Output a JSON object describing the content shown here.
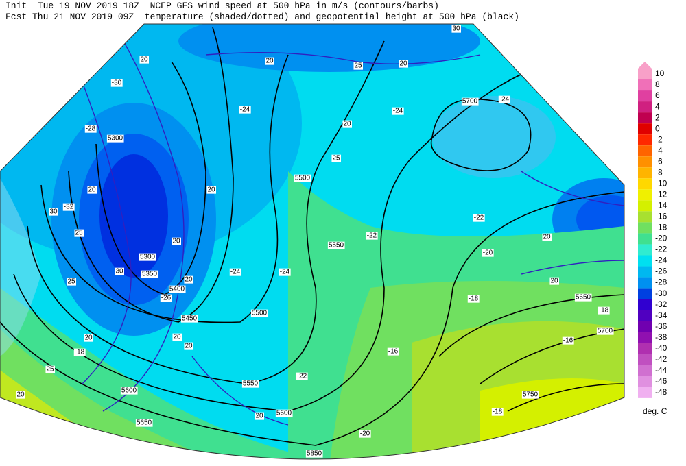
{
  "header": {
    "line1": "Init  Tue 19 NOV 2019 18Z  NCEP GFS wind speed at 500 hPa in m/s (contours/barbs)",
    "line2": "Fcst Thu 21 NOV 2019 09Z  temperature (shaded/dotted) and geopotential height at 500 hPa (black)"
  },
  "legend": {
    "labels": [
      10,
      8,
      6,
      4,
      2,
      0,
      -2,
      -4,
      -6,
      -8,
      -10,
      -12,
      -14,
      -16,
      -18,
      -20,
      -22,
      -24,
      -26,
      -28,
      -30,
      -32,
      -34,
      -36,
      -38,
      -40,
      -42,
      -44,
      -46,
      -48
    ],
    "colors": [
      "#f8a0c8",
      "#f070b8",
      "#e040a0",
      "#d02080",
      "#c00050",
      "#e00000",
      "#ff2800",
      "#ff6400",
      "#ff9000",
      "#ffb400",
      "#ffd800",
      "#f0f000",
      "#d4f000",
      "#a8e030",
      "#70e060",
      "#40e090",
      "#30ecd0",
      "#00e0f0",
      "#00b8f0",
      "#0090f0",
      "#0040e0",
      "#3000d0",
      "#5000c0",
      "#7000b0",
      "#9010b0",
      "#b030b0",
      "#c050c0",
      "#d070d0",
      "#e090e0",
      "#f0b0f0"
    ],
    "unit": "deg. C"
  },
  "map": {
    "labels": [
      "5300",
      "5500",
      "5550",
      "5700",
      "5300",
      "5350",
      "5400",
      "5450",
      "5500",
      "5550",
      "5600",
      "5600",
      "5650",
      "5650",
      "5700",
      "5750",
      "5850",
      "-24",
      "-24",
      "-24",
      "-22",
      "-22",
      "-20",
      "-18",
      "-18",
      "-16",
      "-16",
      "-18",
      "-22",
      "-20",
      "-24",
      "-24",
      "-26",
      "-28",
      "-30",
      "-32",
      "-18",
      "20",
      "20",
      "25",
      "20",
      "30",
      "20",
      "25",
      "20",
      "20",
      "30",
      "25",
      "20",
      "30",
      "25",
      "20",
      "20",
      "20",
      "20",
      "20",
      "20",
      "25",
      "20",
      "20"
    ]
  }
}
